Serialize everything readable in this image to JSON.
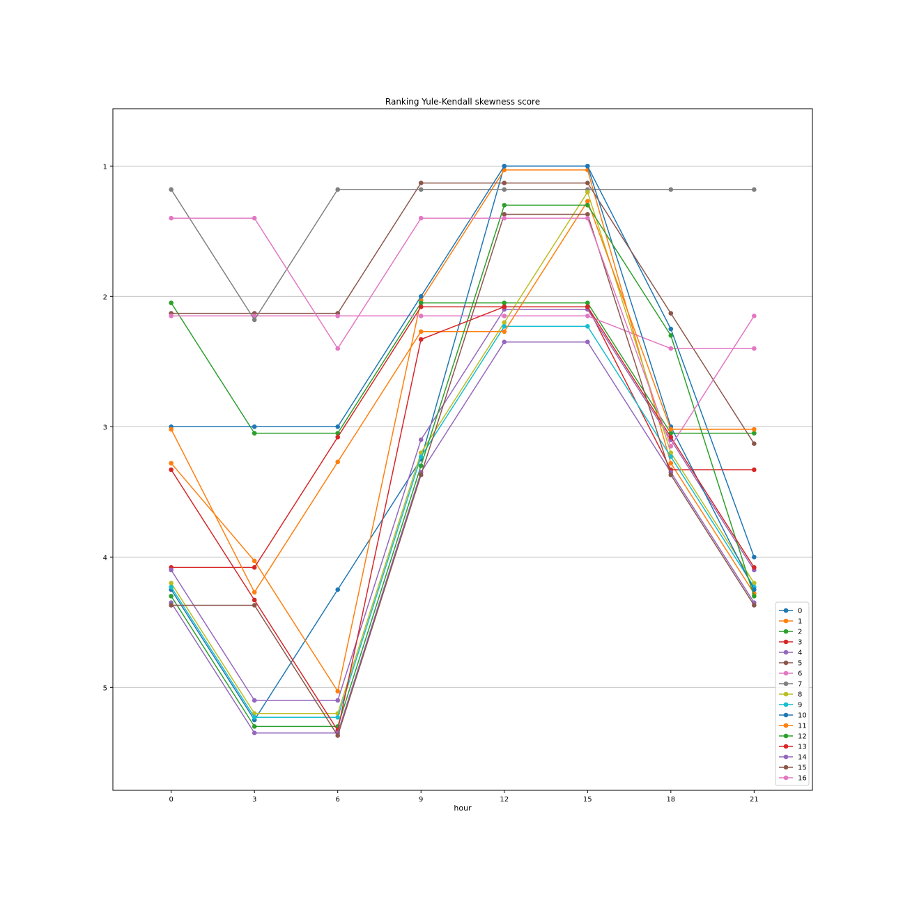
{
  "chart_data": {
    "type": "line",
    "title": "Ranking Yule-Kendall skewness score",
    "xlabel": "hour",
    "ylabel": "",
    "x": [
      0,
      3,
      6,
      9,
      12,
      15,
      18,
      21
    ],
    "x_ticks": [
      "0",
      "3",
      "6",
      "9",
      "12",
      "15",
      "18",
      "21"
    ],
    "y_ticks": [
      "1",
      "2",
      "3",
      "4",
      "5"
    ],
    "y_tick_values": [
      1,
      2,
      3,
      4,
      5
    ],
    "xlim": [
      -2.1,
      23.1
    ],
    "ylim": [
      5.79,
      0.56
    ],
    "y_inverted": true,
    "grid": "y-major",
    "legend_position": "lower right",
    "series": [
      {
        "name": "0",
        "color": "#1f77b4",
        "values": [
          4.25,
          5.25,
          4.25,
          3.25,
          1.0,
          1.0,
          2.25,
          4.0
        ]
      },
      {
        "name": "1",
        "color": "#ff7f0e",
        "values": [
          3.28,
          4.03,
          5.03,
          2.03,
          1.03,
          1.03,
          3.28,
          4.28
        ]
      },
      {
        "name": "2",
        "color": "#2ca02c",
        "values": [
          2.05,
          3.05,
          3.05,
          2.05,
          2.05,
          2.05,
          3.05,
          3.05
        ]
      },
      {
        "name": "3",
        "color": "#d62728",
        "values": [
          4.08,
          4.08,
          3.08,
          2.08,
          2.08,
          2.08,
          3.33,
          3.33
        ]
      },
      {
        "name": "4",
        "color": "#9467bd",
        "values": [
          4.1,
          5.1,
          5.1,
          3.1,
          2.1,
          2.1,
          3.1,
          4.1
        ]
      },
      {
        "name": "5",
        "color": "#8c564b",
        "values": [
          2.13,
          2.13,
          2.13,
          1.13,
          1.13,
          1.13,
          2.13,
          3.13
        ]
      },
      {
        "name": "6",
        "color": "#e377c2",
        "values": [
          2.15,
          2.15,
          2.15,
          2.15,
          2.15,
          2.15,
          2.4,
          2.4
        ]
      },
      {
        "name": "7",
        "color": "#7f7f7f",
        "values": [
          1.18,
          2.18,
          1.18,
          1.18,
          1.18,
          1.18,
          1.18,
          1.18
        ]
      },
      {
        "name": "8",
        "color": "#bcbd22",
        "values": [
          4.2,
          5.2,
          5.2,
          3.2,
          2.2,
          1.2,
          3.2,
          4.2
        ]
      },
      {
        "name": "9",
        "color": "#17becf",
        "values": [
          4.23,
          5.23,
          5.23,
          3.23,
          2.23,
          2.23,
          3.23,
          4.23
        ]
      },
      {
        "name": "10",
        "color": "#1f77b4",
        "values": [
          3.0,
          3.0,
          3.0,
          2.0,
          1.0,
          1.0,
          3.0,
          4.25
        ]
      },
      {
        "name": "11",
        "color": "#ff7f0e",
        "values": [
          3.02,
          4.27,
          3.27,
          2.27,
          2.27,
          1.27,
          3.02,
          3.02
        ]
      },
      {
        "name": "12",
        "color": "#2ca02c",
        "values": [
          4.3,
          5.3,
          5.3,
          3.3,
          1.3,
          1.3,
          2.3,
          4.3
        ]
      },
      {
        "name": "13",
        "color": "#d62728",
        "values": [
          3.33,
          4.33,
          5.33,
          2.33,
          2.08,
          2.08,
          3.08,
          4.08
        ]
      },
      {
        "name": "14",
        "color": "#9467bd",
        "values": [
          4.35,
          5.35,
          5.35,
          3.35,
          2.35,
          2.35,
          3.35,
          4.35
        ]
      },
      {
        "name": "15",
        "color": "#8c564b",
        "values": [
          4.37,
          4.37,
          5.37,
          3.37,
          1.37,
          1.37,
          3.37,
          4.37
        ]
      },
      {
        "name": "16",
        "color": "#e377c2",
        "values": [
          1.4,
          1.4,
          2.4,
          1.4,
          1.4,
          1.4,
          3.15,
          2.15
        ]
      }
    ]
  }
}
